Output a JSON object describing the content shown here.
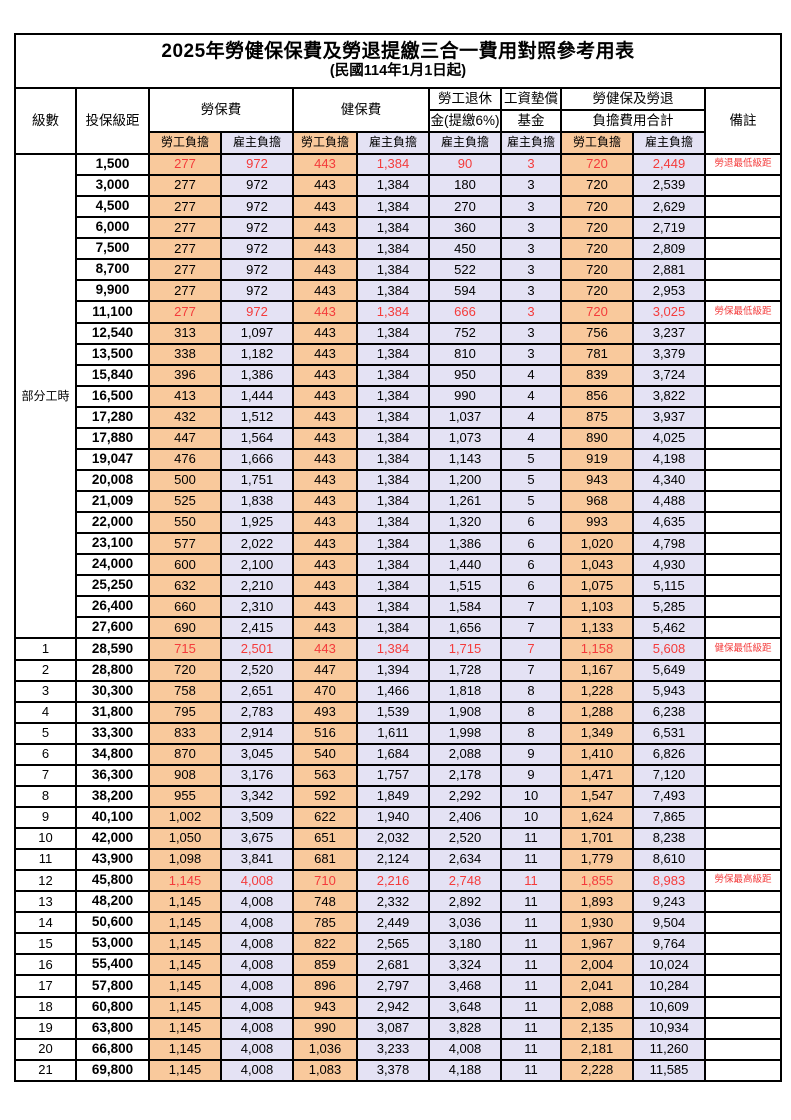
{
  "table": {
    "title": "2025年勞健保保費及勞退提繳三合一費用對照參考用表",
    "subtitle": "(民國114年1月1日起)",
    "headers": {
      "level": "級數",
      "bracket": "投保級距",
      "labor_insurance": "勞保費",
      "health_insurance": "健保費",
      "pension_line1": "勞工退休",
      "pension_line2": "金(提繳6%)",
      "wage_fund_line1": "工資墊償",
      "wage_fund_line2": "基金",
      "total_line1": "勞健保及勞退",
      "total_line2": "負擔費用合計",
      "remark": "備註",
      "employee": "勞工負擔",
      "employer": "雇主負擔"
    },
    "part_time_label": "部分工時",
    "part_time_span": 23,
    "colors": {
      "employee_bg": "#f9c99c",
      "employer_bg": "#e4e2f4",
      "highlight_text": "#f43b3b",
      "border": "#000000"
    },
    "column_names": [
      "labor-ins-employee",
      "labor-ins-employer",
      "health-ins-employee",
      "health-ins-employer",
      "pension-employer",
      "wage-fund-employer",
      "total-employee",
      "total-employer"
    ],
    "rows": [
      {
        "level": "",
        "bracket": "1,500",
        "values": [
          "277",
          "972",
          "443",
          "1,384",
          "90",
          "3",
          "720",
          "2,449"
        ],
        "remark": "勞退最低級距",
        "highlight": true
      },
      {
        "level": "",
        "bracket": "3,000",
        "values": [
          "277",
          "972",
          "443",
          "1,384",
          "180",
          "3",
          "720",
          "2,539"
        ],
        "remark": "",
        "highlight": false
      },
      {
        "level": "",
        "bracket": "4,500",
        "values": [
          "277",
          "972",
          "443",
          "1,384",
          "270",
          "3",
          "720",
          "2,629"
        ],
        "remark": "",
        "highlight": false
      },
      {
        "level": "",
        "bracket": "6,000",
        "values": [
          "277",
          "972",
          "443",
          "1,384",
          "360",
          "3",
          "720",
          "2,719"
        ],
        "remark": "",
        "highlight": false
      },
      {
        "level": "",
        "bracket": "7,500",
        "values": [
          "277",
          "972",
          "443",
          "1,384",
          "450",
          "3",
          "720",
          "2,809"
        ],
        "remark": "",
        "highlight": false
      },
      {
        "level": "",
        "bracket": "8,700",
        "values": [
          "277",
          "972",
          "443",
          "1,384",
          "522",
          "3",
          "720",
          "2,881"
        ],
        "remark": "",
        "highlight": false
      },
      {
        "level": "",
        "bracket": "9,900",
        "values": [
          "277",
          "972",
          "443",
          "1,384",
          "594",
          "3",
          "720",
          "2,953"
        ],
        "remark": "",
        "highlight": false
      },
      {
        "level": "",
        "bracket": "11,100",
        "values": [
          "277",
          "972",
          "443",
          "1,384",
          "666",
          "3",
          "720",
          "3,025"
        ],
        "remark": "勞保最低級距",
        "highlight": true
      },
      {
        "level": "",
        "bracket": "12,540",
        "values": [
          "313",
          "1,097",
          "443",
          "1,384",
          "752",
          "3",
          "756",
          "3,237"
        ],
        "remark": "",
        "highlight": false
      },
      {
        "level": "",
        "bracket": "13,500",
        "values": [
          "338",
          "1,182",
          "443",
          "1,384",
          "810",
          "3",
          "781",
          "3,379"
        ],
        "remark": "",
        "highlight": false
      },
      {
        "level": "",
        "bracket": "15,840",
        "values": [
          "396",
          "1,386",
          "443",
          "1,384",
          "950",
          "4",
          "839",
          "3,724"
        ],
        "remark": "",
        "highlight": false
      },
      {
        "level": "",
        "bracket": "16,500",
        "values": [
          "413",
          "1,444",
          "443",
          "1,384",
          "990",
          "4",
          "856",
          "3,822"
        ],
        "remark": "",
        "highlight": false
      },
      {
        "level": "",
        "bracket": "17,280",
        "values": [
          "432",
          "1,512",
          "443",
          "1,384",
          "1,037",
          "4",
          "875",
          "3,937"
        ],
        "remark": "",
        "highlight": false
      },
      {
        "level": "",
        "bracket": "17,880",
        "values": [
          "447",
          "1,564",
          "443",
          "1,384",
          "1,073",
          "4",
          "890",
          "4,025"
        ],
        "remark": "",
        "highlight": false
      },
      {
        "level": "",
        "bracket": "19,047",
        "values": [
          "476",
          "1,666",
          "443",
          "1,384",
          "1,143",
          "5",
          "919",
          "4,198"
        ],
        "remark": "",
        "highlight": false
      },
      {
        "level": "",
        "bracket": "20,008",
        "values": [
          "500",
          "1,751",
          "443",
          "1,384",
          "1,200",
          "5",
          "943",
          "4,340"
        ],
        "remark": "",
        "highlight": false
      },
      {
        "level": "",
        "bracket": "21,009",
        "values": [
          "525",
          "1,838",
          "443",
          "1,384",
          "1,261",
          "5",
          "968",
          "4,488"
        ],
        "remark": "",
        "highlight": false
      },
      {
        "level": "",
        "bracket": "22,000",
        "values": [
          "550",
          "1,925",
          "443",
          "1,384",
          "1,320",
          "6",
          "993",
          "4,635"
        ],
        "remark": "",
        "highlight": false
      },
      {
        "level": "",
        "bracket": "23,100",
        "values": [
          "577",
          "2,022",
          "443",
          "1,384",
          "1,386",
          "6",
          "1,020",
          "4,798"
        ],
        "remark": "",
        "highlight": false
      },
      {
        "level": "",
        "bracket": "24,000",
        "values": [
          "600",
          "2,100",
          "443",
          "1,384",
          "1,440",
          "6",
          "1,043",
          "4,930"
        ],
        "remark": "",
        "highlight": false
      },
      {
        "level": "",
        "bracket": "25,250",
        "values": [
          "632",
          "2,210",
          "443",
          "1,384",
          "1,515",
          "6",
          "1,075",
          "5,115"
        ],
        "remark": "",
        "highlight": false
      },
      {
        "level": "",
        "bracket": "26,400",
        "values": [
          "660",
          "2,310",
          "443",
          "1,384",
          "1,584",
          "7",
          "1,103",
          "5,285"
        ],
        "remark": "",
        "highlight": false
      },
      {
        "level": "",
        "bracket": "27,600",
        "values": [
          "690",
          "2,415",
          "443",
          "1,384",
          "1,656",
          "7",
          "1,133",
          "5,462"
        ],
        "remark": "",
        "highlight": false
      },
      {
        "level": "1",
        "bracket": "28,590",
        "values": [
          "715",
          "2,501",
          "443",
          "1,384",
          "1,715",
          "7",
          "1,158",
          "5,608"
        ],
        "remark": "健保最低級距",
        "highlight": true
      },
      {
        "level": "2",
        "bracket": "28,800",
        "values": [
          "720",
          "2,520",
          "447",
          "1,394",
          "1,728",
          "7",
          "1,167",
          "5,649"
        ],
        "remark": "",
        "highlight": false
      },
      {
        "level": "3",
        "bracket": "30,300",
        "values": [
          "758",
          "2,651",
          "470",
          "1,466",
          "1,818",
          "8",
          "1,228",
          "5,943"
        ],
        "remark": "",
        "highlight": false
      },
      {
        "level": "4",
        "bracket": "31,800",
        "values": [
          "795",
          "2,783",
          "493",
          "1,539",
          "1,908",
          "8",
          "1,288",
          "6,238"
        ],
        "remark": "",
        "highlight": false
      },
      {
        "level": "5",
        "bracket": "33,300",
        "values": [
          "833",
          "2,914",
          "516",
          "1,611",
          "1,998",
          "8",
          "1,349",
          "6,531"
        ],
        "remark": "",
        "highlight": false
      },
      {
        "level": "6",
        "bracket": "34,800",
        "values": [
          "870",
          "3,045",
          "540",
          "1,684",
          "2,088",
          "9",
          "1,410",
          "6,826"
        ],
        "remark": "",
        "highlight": false
      },
      {
        "level": "7",
        "bracket": "36,300",
        "values": [
          "908",
          "3,176",
          "563",
          "1,757",
          "2,178",
          "9",
          "1,471",
          "7,120"
        ],
        "remark": "",
        "highlight": false
      },
      {
        "level": "8",
        "bracket": "38,200",
        "values": [
          "955",
          "3,342",
          "592",
          "1,849",
          "2,292",
          "10",
          "1,547",
          "7,493"
        ],
        "remark": "",
        "highlight": false
      },
      {
        "level": "9",
        "bracket": "40,100",
        "values": [
          "1,002",
          "3,509",
          "622",
          "1,940",
          "2,406",
          "10",
          "1,624",
          "7,865"
        ],
        "remark": "",
        "highlight": false
      },
      {
        "level": "10",
        "bracket": "42,000",
        "values": [
          "1,050",
          "3,675",
          "651",
          "2,032",
          "2,520",
          "11",
          "1,701",
          "8,238"
        ],
        "remark": "",
        "highlight": false
      },
      {
        "level": "11",
        "bracket": "43,900",
        "values": [
          "1,098",
          "3,841",
          "681",
          "2,124",
          "2,634",
          "11",
          "1,779",
          "8,610"
        ],
        "remark": "",
        "highlight": false
      },
      {
        "level": "12",
        "bracket": "45,800",
        "values": [
          "1,145",
          "4,008",
          "710",
          "2,216",
          "2,748",
          "11",
          "1,855",
          "8,983"
        ],
        "remark": "勞保最高級距",
        "highlight": true
      },
      {
        "level": "13",
        "bracket": "48,200",
        "values": [
          "1,145",
          "4,008",
          "748",
          "2,332",
          "2,892",
          "11",
          "1,893",
          "9,243"
        ],
        "remark": "",
        "highlight": false
      },
      {
        "level": "14",
        "bracket": "50,600",
        "values": [
          "1,145",
          "4,008",
          "785",
          "2,449",
          "3,036",
          "11",
          "1,930",
          "9,504"
        ],
        "remark": "",
        "highlight": false
      },
      {
        "level": "15",
        "bracket": "53,000",
        "values": [
          "1,145",
          "4,008",
          "822",
          "2,565",
          "3,180",
          "11",
          "1,967",
          "9,764"
        ],
        "remark": "",
        "highlight": false
      },
      {
        "level": "16",
        "bracket": "55,400",
        "values": [
          "1,145",
          "4,008",
          "859",
          "2,681",
          "3,324",
          "11",
          "2,004",
          "10,024"
        ],
        "remark": "",
        "highlight": false
      },
      {
        "level": "17",
        "bracket": "57,800",
        "values": [
          "1,145",
          "4,008",
          "896",
          "2,797",
          "3,468",
          "11",
          "2,041",
          "10,284"
        ],
        "remark": "",
        "highlight": false
      },
      {
        "level": "18",
        "bracket": "60,800",
        "values": [
          "1,145",
          "4,008",
          "943",
          "2,942",
          "3,648",
          "11",
          "2,088",
          "10,609"
        ],
        "remark": "",
        "highlight": false
      },
      {
        "level": "19",
        "bracket": "63,800",
        "values": [
          "1,145",
          "4,008",
          "990",
          "3,087",
          "3,828",
          "11",
          "2,135",
          "10,934"
        ],
        "remark": "",
        "highlight": false
      },
      {
        "level": "20",
        "bracket": "66,800",
        "values": [
          "1,145",
          "4,008",
          "1,036",
          "3,233",
          "4,008",
          "11",
          "2,181",
          "11,260"
        ],
        "remark": "",
        "highlight": false
      },
      {
        "level": "21",
        "bracket": "69,800",
        "values": [
          "1,145",
          "4,008",
          "1,083",
          "3,378",
          "4,188",
          "11",
          "2,228",
          "11,585"
        ],
        "remark": "",
        "highlight": false
      }
    ]
  }
}
